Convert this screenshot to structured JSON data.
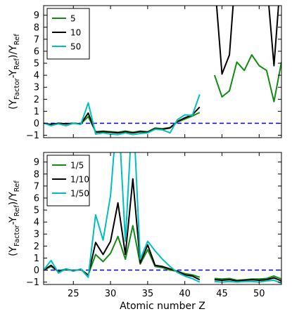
{
  "chart_data": [
    {
      "type": "line",
      "panel": "top",
      "xlim": [
        21,
        53
      ],
      "ylim": [
        -1.2,
        9.8
      ],
      "yticks": [
        -1,
        0,
        1,
        2,
        3,
        4,
        5,
        6,
        7,
        8,
        9
      ],
      "xticks": [
        25,
        30,
        35,
        40,
        45,
        50
      ],
      "show_xtick_labels": false,
      "ylabel": "(Y",
      "ylabel_parts": {
        "p1": "(Y",
        "s1": "Factor",
        "p2": "-Y",
        "s2": "Ref",
        "p3": ")/Y",
        "s3": "Ref"
      },
      "legend": {
        "placement": "top-left"
      },
      "reference_line": {
        "y": 0,
        "color": "#0000ff",
        "style": "dashed"
      },
      "series": [
        {
          "name": "5",
          "color": "#138a13",
          "segments": [
            {
              "x": [
                21,
                22,
                23,
                24,
                25,
                26,
                27,
                28,
                29,
                30,
                31,
                32,
                33,
                34,
                35,
                36,
                37,
                38,
                39,
                40,
                41,
                42
              ],
              "y": [
                0.0,
                -0.1,
                0.0,
                -0.05,
                0.0,
                -0.05,
                0.55,
                -0.7,
                -0.65,
                -0.7,
                -0.75,
                -0.65,
                -0.75,
                -0.65,
                -0.7,
                -0.4,
                -0.45,
                -0.35,
                0.1,
                0.35,
                0.6,
                0.9
              ]
            },
            {
              "x": [
                44,
                45,
                46,
                47,
                48,
                49,
                50,
                51,
                52,
                53
              ],
              "y": [
                4.0,
                2.2,
                2.7,
                5.1,
                4.4,
                5.7,
                4.8,
                4.4,
                1.8,
                5.1
              ]
            }
          ]
        },
        {
          "name": "10",
          "color": "#000000",
          "segments": [
            {
              "x": [
                21,
                22,
                23,
                24,
                25,
                26,
                27,
                28,
                29,
                30,
                31,
                32,
                33,
                34,
                35,
                36,
                37,
                38,
                39,
                40,
                41,
                42
              ],
              "y": [
                0.0,
                -0.1,
                0.0,
                -0.05,
                0.0,
                -0.05,
                0.85,
                -0.75,
                -0.7,
                -0.75,
                -0.8,
                -0.7,
                -0.8,
                -0.7,
                -0.75,
                -0.45,
                -0.5,
                -0.4,
                0.15,
                0.45,
                0.7,
                1.35
              ]
            },
            {
              "x": [
                44,
                45,
                46,
                47,
                48,
                49,
                50,
                51,
                52,
                53
              ],
              "y": [
                12.0,
                4.1,
                5.7,
                14.0,
                13.0,
                14.0,
                13.5,
                12.0,
                4.8,
                13.0
              ]
            }
          ]
        },
        {
          "name": "50",
          "color": "#00bfbf",
          "segments": [
            {
              "x": [
                21,
                22,
                23,
                24,
                25,
                26,
                27,
                28,
                29,
                30,
                31,
                32,
                33,
                34,
                35,
                36,
                37,
                38,
                39,
                40,
                41,
                42
              ],
              "y": [
                0.0,
                -0.2,
                -0.05,
                -0.2,
                0.0,
                -0.1,
                1.7,
                -0.9,
                -0.8,
                -0.9,
                -0.95,
                -0.8,
                -0.95,
                -0.85,
                -0.8,
                -0.5,
                -0.55,
                -0.8,
                0.3,
                0.7,
                0.65,
                2.4
              ]
            }
          ]
        }
      ]
    },
    {
      "type": "line",
      "panel": "bottom",
      "xlim": [
        21,
        53
      ],
      "ylim": [
        -1.2,
        9.8
      ],
      "yticks": [
        -1,
        0,
        1,
        2,
        3,
        4,
        5,
        6,
        7,
        8,
        9
      ],
      "xticks": [
        25,
        30,
        35,
        40,
        45,
        50
      ],
      "xtick_labels": [
        "25",
        "30",
        "35",
        "40",
        "45",
        "50"
      ],
      "show_xtick_labels": true,
      "xlabel": "Atomic number Z",
      "ylabel_parts": {
        "p1": "(Y",
        "s1": "Factor",
        "p2": "-Y",
        "s2": "Ref",
        "p3": ")/Y",
        "s3": "Ref"
      },
      "legend": {
        "placement": "top-left"
      },
      "reference_line": {
        "y": 0,
        "color": "#0000ff",
        "style": "dashed"
      },
      "series": [
        {
          "name": "1/5",
          "color": "#138a13",
          "segments": [
            {
              "x": [
                21,
                22,
                23,
                24,
                25,
                26,
                27,
                28,
                29,
                30,
                31,
                32,
                33,
                34,
                35,
                36,
                37,
                38,
                39,
                40,
                41,
                42
              ],
              "y": [
                0.0,
                0.3,
                -0.1,
                0.1,
                -0.05,
                0.05,
                -0.4,
                1.3,
                0.7,
                1.4,
                2.8,
                0.9,
                3.7,
                0.5,
                1.7,
                0.3,
                0.2,
                0.0,
                -0.1,
                -0.3,
                -0.4,
                -0.6
              ]
            },
            {
              "x": [
                44,
                45,
                46,
                47,
                48,
                49,
                50,
                51,
                52,
                53
              ],
              "y": [
                -0.7,
                -0.75,
                -0.7,
                -0.85,
                -0.8,
                -0.75,
                -0.75,
                -0.7,
                -0.5,
                -0.75
              ]
            }
          ]
        },
        {
          "name": "1/10",
          "color": "#000000",
          "segments": [
            {
              "x": [
                21,
                22,
                23,
                24,
                25,
                26,
                27,
                28,
                29,
                30,
                31,
                32,
                33,
                34,
                35,
                36,
                37,
                38,
                39,
                40,
                41,
                42
              ],
              "y": [
                0.0,
                0.4,
                -0.15,
                0.05,
                -0.05,
                0.05,
                -0.45,
                2.3,
                1.3,
                2.4,
                5.6,
                1.3,
                7.6,
                0.6,
                2.1,
                0.4,
                0.3,
                0.1,
                -0.1,
                -0.4,
                -0.5,
                -0.8
              ]
            },
            {
              "x": [
                44,
                45,
                46,
                47,
                48,
                49,
                50,
                51,
                52,
                53
              ],
              "y": [
                -0.8,
                -0.85,
                -0.8,
                -0.9,
                -0.85,
                -0.8,
                -0.85,
                -0.8,
                -0.65,
                -0.9
              ]
            }
          ]
        },
        {
          "name": "1/50",
          "color": "#00bfbf",
          "segments": [
            {
              "x": [
                21,
                22,
                23,
                24,
                25,
                26,
                27,
                28,
                29,
                30,
                31,
                32,
                33,
                34,
                35,
                36,
                37,
                38,
                39,
                40,
                41,
                42
              ],
              "y": [
                0.0,
                0.8,
                -0.25,
                0.1,
                -0.1,
                0.1,
                -0.6,
                4.6,
                2.5,
                6.2,
                14.0,
                2.4,
                14.0,
                0.9,
                2.4,
                1.6,
                0.9,
                0.3,
                -0.2,
                -0.5,
                -0.7,
                -1.0
              ]
            },
            {
              "x": [
                44,
                45,
                46,
                47,
                48,
                49,
                50,
                51,
                52,
                53
              ],
              "y": [
                -0.95,
                -1.0,
                -0.95,
                -1.0,
                -0.95,
                -0.95,
                -1.0,
                -0.9,
                -0.85,
                -1.1
              ]
            }
          ]
        }
      ]
    }
  ]
}
